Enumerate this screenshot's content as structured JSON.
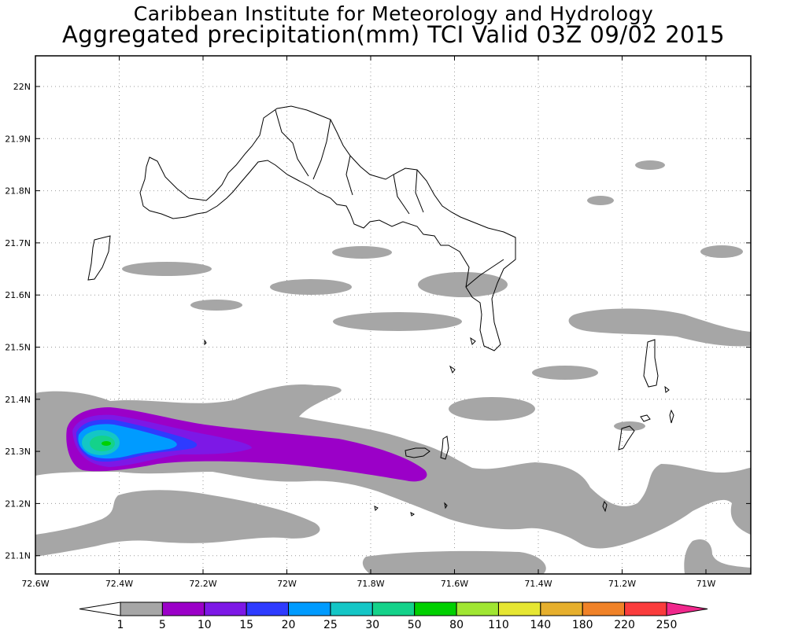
{
  "title_line1": "Caribbean Institute for Meteorology and Hydrology",
  "title_line2": "Aggregated precipitation(mm) TCI Valid 03Z 09/02 2015",
  "axes": {
    "lon_labels": [
      "72.6W",
      "72.4W",
      "72.2W",
      "72W",
      "71.8W",
      "71.6W",
      "71.4W",
      "71.2W",
      "71W"
    ],
    "lat_labels": [
      "22N",
      "21.9N",
      "21.8N",
      "21.7N",
      "21.6N",
      "21.5N",
      "21.4N",
      "21.3N",
      "21.2N",
      "21.1N"
    ]
  },
  "colorbar": {
    "labels": [
      "1",
      "5",
      "10",
      "15",
      "20",
      "25",
      "30",
      "50",
      "80",
      "110",
      "140",
      "180",
      "220",
      "250"
    ],
    "colors": [
      "#a6a6a6",
      "#9b00c8",
      "#7d18e6",
      "#2e3bff",
      "#009bff",
      "#14c6c6",
      "#14d28a",
      "#00d000",
      "#a0e632",
      "#e6e632",
      "#e6af2d",
      "#f08228",
      "#fa3c3c",
      "#f0288c"
    ]
  },
  "colors": {
    "land_outline": "#000000",
    "grid": "#9a9a9a",
    "precip_light": "#a6a6a6"
  }
}
